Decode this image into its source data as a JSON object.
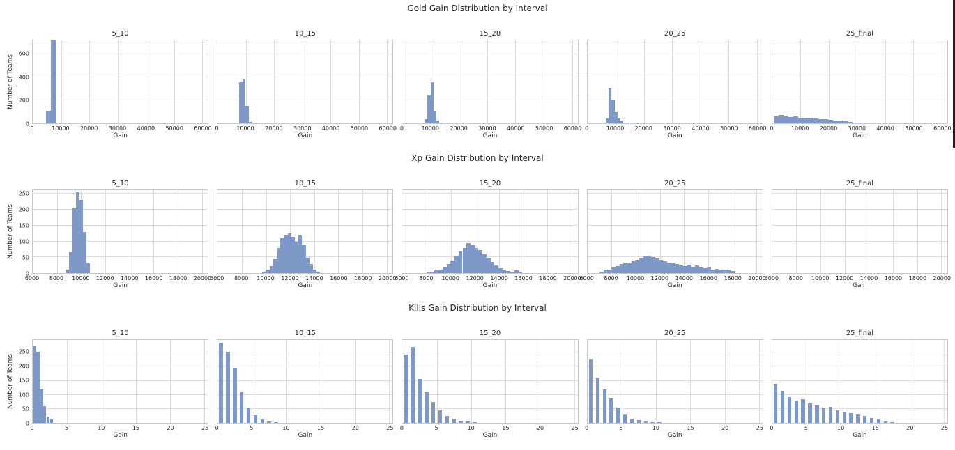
{
  "scrollbar": {
    "present": true,
    "color": "#1f1f1f"
  },
  "chart_data": [
    {
      "id": "gold",
      "type": "bar",
      "title": "Gold Gain Distribution by Interval",
      "xlabel": "Gain",
      "ylabel": "Number of Teams",
      "xmin": 0,
      "xmax": 62000,
      "xticks": [
        0,
        10000,
        20000,
        30000,
        40000,
        50000,
        60000
      ],
      "ymax": 720,
      "yticks": [
        0,
        200,
        400,
        600
      ],
      "bar_rel_width": 1,
      "bar_color": "#7e99c7",
      "grid": true,
      "subplots": [
        {
          "label": "5_10",
          "bin_start": 4800,
          "bin_width": 1700,
          "counts": [
            110,
            780
          ]
        },
        {
          "label": "10_15",
          "bin_start": 7600,
          "bin_width": 1150,
          "counts": [
            360,
            380,
            150,
            14
          ]
        },
        {
          "label": "15_20",
          "bin_start": 7800,
          "bin_width": 1050,
          "counts": [
            35,
            245,
            360,
            100,
            24,
            8
          ]
        },
        {
          "label": "20_25",
          "bin_start": 6500,
          "bin_width": 1050,
          "counts": [
            45,
            300,
            200,
            95,
            45,
            18,
            8,
            4
          ]
        },
        {
          "label": "25_final",
          "bin_start": 500,
          "bin_width": 1750,
          "counts": [
            62,
            70,
            60,
            55,
            58,
            50,
            46,
            48,
            40,
            38,
            34,
            30,
            26,
            22,
            16,
            11,
            7,
            4,
            3,
            2
          ]
        }
      ]
    },
    {
      "id": "xp",
      "type": "bar",
      "title": "Xp Gain Distribution by Interval",
      "xlabel": "Gain",
      "ylabel": "Number of Teams",
      "xmin": 6000,
      "xmax": 20500,
      "xticks": [
        6000,
        8000,
        10000,
        12000,
        14000,
        16000,
        18000,
        20000
      ],
      "ymax": 262,
      "yticks": [
        0,
        50,
        100,
        150,
        200,
        250
      ],
      "bar_rel_width": 1,
      "bar_color": "#7e99c7",
      "grid": true,
      "subplots": [
        {
          "label": "5_10",
          "bin_start": 8700,
          "bin_width": 290,
          "counts": [
            12,
            65,
            205,
            255,
            232,
            130,
            30
          ]
        },
        {
          "label": "10_15",
          "bin_start": 9700,
          "bin_width": 300,
          "counts": [
            4,
            10,
            22,
            45,
            80,
            110,
            122,
            125,
            115,
            100,
            118,
            90,
            48,
            28,
            10,
            4
          ]
        },
        {
          "label": "15_20",
          "bin_start": 8000,
          "bin_width": 330,
          "counts": [
            3,
            5,
            8,
            12,
            18,
            28,
            40,
            55,
            68,
            80,
            95,
            88,
            80,
            72,
            60,
            48,
            35,
            25,
            15,
            10,
            6,
            4,
            8,
            5
          ]
        },
        {
          "label": "20_25",
          "bin_start": 7000,
          "bin_width": 330,
          "counts": [
            5,
            8,
            12,
            18,
            22,
            28,
            32,
            30,
            38,
            42,
            48,
            52,
            55,
            50,
            46,
            42,
            38,
            34,
            30,
            28,
            25,
            22,
            26,
            20,
            24,
            18,
            15,
            18,
            12,
            14,
            10,
            8,
            10,
            6
          ]
        },
        {
          "label": "25_final",
          "bin_start": 0,
          "bin_width": 1,
          "counts": []
        }
      ]
    },
    {
      "id": "kills",
      "type": "bar",
      "title": "Kills Gain Distribution by Interval",
      "xlabel": "Gain",
      "ylabel": "Number of Teams",
      "xmin": 0,
      "xmax": 25.5,
      "xticks": [
        0,
        5,
        10,
        15,
        20,
        25
      ],
      "ymax": 295,
      "yticks": [
        0,
        50,
        100,
        150,
        200,
        250
      ],
      "bar_rel_width": 0.55,
      "bar_color": "#7e99c7",
      "grid": true,
      "subplots": [
        {
          "label": "5_10",
          "bin_start": 0,
          "bin_width": 0.5,
          "bar_rel_width": 0.9,
          "counts": [
            275,
            252,
            118,
            60,
            22,
            12
          ]
        },
        {
          "label": "10_15",
          "bin_start": 0,
          "bin_width": 1,
          "counts": [
            285,
            252,
            195,
            110,
            55,
            28,
            12,
            5,
            2
          ]
        },
        {
          "label": "15_20",
          "bin_start": 0,
          "bin_width": 1,
          "counts": [
            242,
            270,
            155,
            108,
            75,
            45,
            25,
            14,
            8,
            4,
            2
          ]
        },
        {
          "label": "20_25",
          "bin_start": 0,
          "bin_width": 1,
          "counts": [
            225,
            162,
            120,
            88,
            55,
            30,
            14,
            10,
            5,
            3,
            2
          ]
        },
        {
          "label": "25_final",
          "bin_start": 0,
          "bin_width": 1,
          "counts": [
            140,
            115,
            92,
            80,
            85,
            70,
            62,
            55,
            58,
            45,
            40,
            35,
            30,
            25,
            18,
            12,
            6,
            3
          ]
        }
      ]
    }
  ]
}
